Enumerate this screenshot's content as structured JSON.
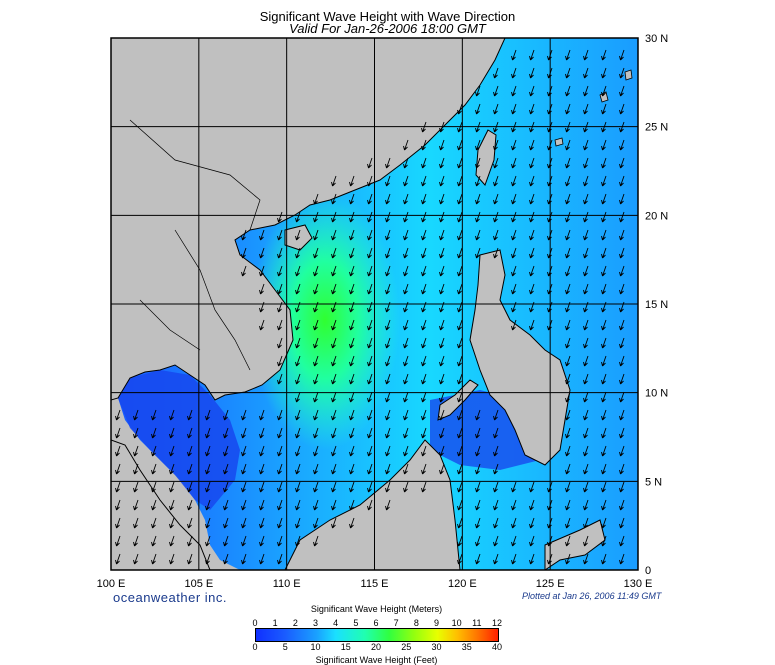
{
  "title": "Significant Wave Height with Wave Direction",
  "subtitle": "Valid For Jan-26-2006 18:00 GMT",
  "lon_labels": [
    "100 E",
    "105 E",
    "110 E",
    "115 E",
    "120 E",
    "125 E",
    "130 E"
  ],
  "lat_labels": [
    "30 N",
    "25 N",
    "20 N",
    "15 N",
    "10 N",
    "5 N",
    "0"
  ],
  "brand": "oceanweather inc.",
  "plotted": "Plotted at Jan 26, 2006 11:49 GMT",
  "colorbar": {
    "title_meters": "Significant Wave Height (Meters)",
    "title_feet": "Significant Wave Height (Feet)",
    "meter_ticks": [
      "0",
      "1",
      "2",
      "3",
      "4",
      "5",
      "6",
      "7",
      "8",
      "9",
      "10",
      "11",
      "12"
    ],
    "feet_ticks": [
      "0",
      "5",
      "10",
      "15",
      "20",
      "25",
      "30",
      "35",
      "40"
    ],
    "range_meters": [
      0,
      12
    ]
  },
  "map": {
    "lon_range": [
      100,
      130
    ],
    "lat_range": [
      0,
      30
    ],
    "wave_direction": "toward southwest",
    "peak_height_meters": 6,
    "colors": {
      "land": "#c0c0c0",
      "coast": "#000000",
      "grid": "#000000",
      "arrow": "#000000"
    }
  }
}
